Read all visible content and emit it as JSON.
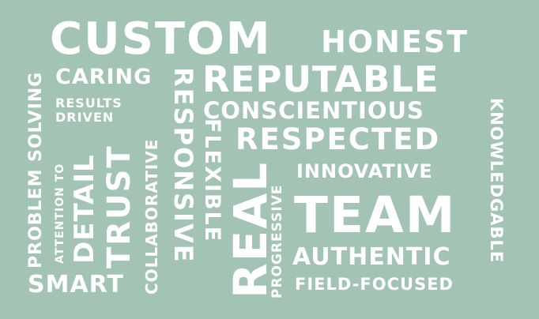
{
  "background_color": "#a3c4b4",
  "text_color": "#ffffff",
  "words": {
    "custom": "CUSTOM",
    "honest": "HONEST",
    "caring": "CARING",
    "reputable": "REPUTABLE",
    "results": "RESULTS",
    "driven": "DRIVEN",
    "conscientious": "CONSCIENTIOUS",
    "respected": "RESPECTED",
    "innovative": "INNOVATIVE",
    "team": "TEAM",
    "authentic": "AUTHENTIC",
    "field_focused": "FIELD-FOCUSED",
    "smart": "SMART",
    "problem_solving": "PROBLEM SOLVING",
    "attention_to": "ATTENTION TO",
    "detail": "DETAIL",
    "trust": "TRUST",
    "collaborative": "COLLABORATIVE",
    "responsive": "RESPONSIVE",
    "flexible": "FLEXIBLE",
    "real": "REAL",
    "progressive": "PROGRESSIVE",
    "knowledgable": "KNOWLEDGABLE"
  }
}
